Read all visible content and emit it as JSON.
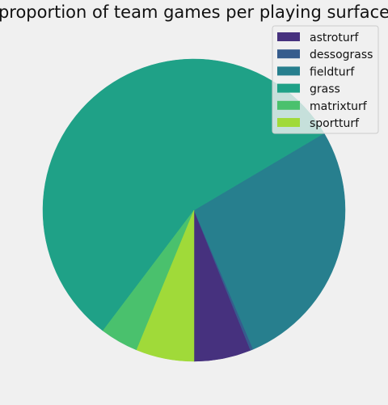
{
  "chart_data": {
    "type": "pie",
    "title": "proportion of team games per playing surface",
    "slices": [
      {
        "label": "astroturf",
        "value": 0.061,
        "color": "#46317e"
      },
      {
        "label": "dessograss",
        "value": 0.003,
        "color": "#365c8d"
      },
      {
        "label": "fieldturf",
        "value": 0.271,
        "color": "#277f8e"
      },
      {
        "label": "grass",
        "value": 0.562,
        "color": "#1fa187"
      },
      {
        "label": "matrixturf",
        "value": 0.041,
        "color": "#4ac16d"
      },
      {
        "label": "sportturf",
        "value": 0.062,
        "color": "#a0da39"
      }
    ],
    "start_angle_deg": 270,
    "direction": "counterclockwise",
    "legend_position": "top-right"
  }
}
